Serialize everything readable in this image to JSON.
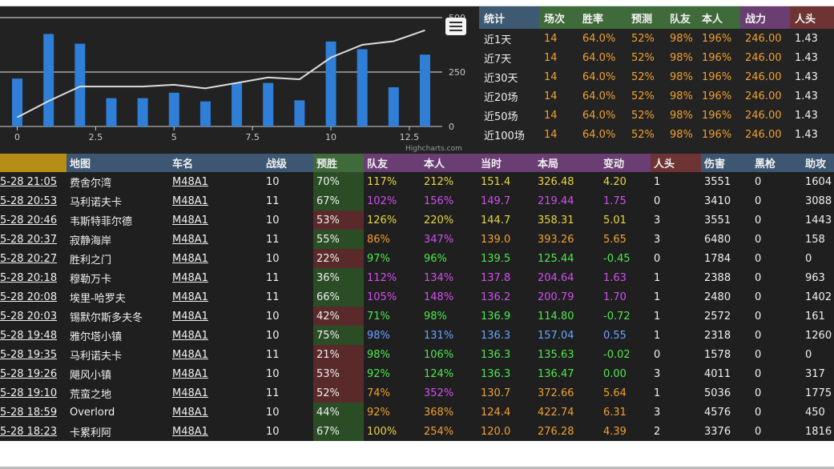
{
  "chart_data": {
    "type": "bar",
    "x": [
      0,
      1,
      2,
      3,
      4,
      5,
      6,
      7,
      8,
      9,
      10,
      11,
      12,
      13
    ],
    "series": [
      {
        "kind": "bar",
        "axis": "right",
        "color": "#2f7ed8",
        "values": [
          220,
          425,
          380,
          130,
          130,
          155,
          115,
          200,
          200,
          120,
          390,
          355,
          180,
          330
        ]
      },
      {
        "kind": "line",
        "axis": "left",
        "color": "#dddddd",
        "values": [
          5,
          14,
          22,
          22,
          22,
          23,
          21,
          24,
          27,
          26,
          38,
          45,
          47,
          53
        ]
      }
    ],
    "xticks": [
      "0",
      "2.5",
      "5",
      "7.5",
      "10",
      "12.5"
    ],
    "xtick_values": [
      0,
      2.5,
      5,
      7.5,
      10,
      12.5
    ],
    "yticks_right": [
      "500",
      "250",
      "0"
    ],
    "ylim_right": [
      0,
      500
    ],
    "ylim_left": [
      0,
      60
    ],
    "xlim": [
      -0.55,
      13.55
    ],
    "credit": "Highcharts.com"
  },
  "stats": {
    "headers": [
      "统计",
      "场次",
      "胜率",
      "预测",
      "队友",
      "本人",
      "战力",
      "人头"
    ],
    "rows": [
      [
        "近1天",
        "14",
        "64.0%",
        "52%",
        "98%",
        "196%",
        "246.00",
        "1.43"
      ],
      [
        "近7天",
        "14",
        "64.0%",
        "52%",
        "98%",
        "196%",
        "246.00",
        "1.43"
      ],
      [
        "近30天",
        "14",
        "64.0%",
        "52%",
        "98%",
        "196%",
        "246.00",
        "1.43"
      ],
      [
        "近20场",
        "14",
        "64.0%",
        "52%",
        "98%",
        "196%",
        "246.00",
        "1.43"
      ],
      [
        "近50场",
        "14",
        "64.0%",
        "52%",
        "98%",
        "196%",
        "246.00",
        "1.43"
      ],
      [
        "近100场",
        "14",
        "64.0%",
        "52%",
        "98%",
        "196%",
        "246.00",
        "1.43"
      ]
    ]
  },
  "battles": {
    "headers": [
      "",
      "地图",
      "车名",
      "战级",
      "预胜",
      "队友",
      "本人",
      "当时",
      "本局",
      "变动",
      "人头",
      "伤害",
      "黑枪",
      "助攻"
    ],
    "rows": [
      [
        "5-28 21:05",
        "费舍尔湾",
        "M48A1",
        "10",
        "70%",
        "117%",
        "212%",
        "151.4",
        "326.48",
        "4.20",
        "1",
        "3551",
        "0",
        "1604"
      ],
      [
        "5-28 20:53",
        "马利诺夫卡",
        "M48A1",
        "11",
        "67%",
        "102%",
        "156%",
        "149.7",
        "219.44",
        "1.75",
        "0",
        "3410",
        "0",
        "3088"
      ],
      [
        "5-28 20:46",
        "韦斯特菲尔德",
        "M48A1",
        "10",
        "53%",
        "126%",
        "220%",
        "144.7",
        "358.31",
        "5.01",
        "3",
        "3551",
        "0",
        "1443"
      ],
      [
        "5-28 20:37",
        "寂静海岸",
        "M48A1",
        "11",
        "55%",
        "86%",
        "347%",
        "139.0",
        "393.26",
        "5.65",
        "3",
        "6480",
        "0",
        "158"
      ],
      [
        "5-28 20:27",
        "胜利之门",
        "M48A1",
        "10",
        "22%",
        "97%",
        "96%",
        "139.5",
        "125.44",
        "-0.45",
        "0",
        "1784",
        "0",
        "0"
      ],
      [
        "5-28 20:18",
        "穆勒万卡",
        "M48A1",
        "11",
        "36%",
        "112%",
        "134%",
        "137.8",
        "204.64",
        "1.63",
        "1",
        "2388",
        "0",
        "963"
      ],
      [
        "5-28 20:08",
        "埃里-哈罗夫",
        "M48A1",
        "11",
        "66%",
        "105%",
        "148%",
        "136.2",
        "200.79",
        "1.70",
        "1",
        "2480",
        "0",
        "1402"
      ],
      [
        "5-28 20:03",
        "锡默尔斯多夫冬",
        "M48A1",
        "10",
        "42%",
        "71%",
        "98%",
        "136.9",
        "114.80",
        "-0.72",
        "1",
        "2572",
        "0",
        "161"
      ],
      [
        "5-28 19:48",
        "雅尔塔小镇",
        "M48A1",
        "10",
        "75%",
        "98%",
        "131%",
        "136.3",
        "157.04",
        "0.55",
        "1",
        "2318",
        "0",
        "1260"
      ],
      [
        "5-28 19:35",
        "马利诺夫卡",
        "M48A1",
        "11",
        "21%",
        "98%",
        "106%",
        "136.3",
        "135.63",
        "-0.02",
        "0",
        "1578",
        "0",
        "0"
      ],
      [
        "5-28 19:26",
        "飓风小镇",
        "M48A1",
        "10",
        "53%",
        "92%",
        "124%",
        "136.3",
        "136.47",
        "0.00",
        "3",
        "4011",
        "0",
        "317"
      ],
      [
        "5-28 19:10",
        "荒蛮之地",
        "M48A1",
        "11",
        "52%",
        "74%",
        "352%",
        "130.7",
        "372.66",
        "5.64",
        "1",
        "5036",
        "0",
        "1775"
      ],
      [
        "5-28 18:59",
        "Overlord",
        "M48A1",
        "10",
        "44%",
        "92%",
        "368%",
        "124.4",
        "422.74",
        "6.31",
        "3",
        "4576",
        "0",
        "450"
      ],
      [
        "5-28 18:23",
        "卡累利阿",
        "M48A1",
        "10",
        "67%",
        "100%",
        "254%",
        "120.0",
        "276.28",
        "4.39",
        "2",
        "3376",
        "0",
        "1816"
      ]
    ],
    "row_colors": [
      [
        "white",
        "white",
        "white",
        "white",
        "white",
        "yellow",
        "yellow",
        "yellow",
        "yellow",
        "yellow",
        "white",
        "white",
        "white",
        "white"
      ],
      [
        "white",
        "white",
        "white",
        "white",
        "white",
        "purple",
        "purple",
        "purple",
        "purple",
        "purple",
        "white",
        "white",
        "white",
        "white"
      ],
      [
        "white",
        "white",
        "white",
        "white",
        "white",
        "yellow",
        "yellow",
        "yellow",
        "yellow",
        "yellow",
        "white",
        "white",
        "white",
        "white"
      ],
      [
        "white",
        "white",
        "white",
        "white",
        "white",
        "orange",
        "purple",
        "orange",
        "orange",
        "orange",
        "white",
        "white",
        "white",
        "white"
      ],
      [
        "white",
        "white",
        "white",
        "white",
        "white",
        "green",
        "green",
        "green",
        "green",
        "green",
        "white",
        "white",
        "white",
        "white"
      ],
      [
        "white",
        "white",
        "white",
        "white",
        "white",
        "purple",
        "purple",
        "purple",
        "purple",
        "purple",
        "white",
        "white",
        "white",
        "white"
      ],
      [
        "white",
        "white",
        "white",
        "white",
        "white",
        "purple",
        "purple",
        "purple",
        "purple",
        "purple",
        "white",
        "white",
        "white",
        "white"
      ],
      [
        "white",
        "white",
        "white",
        "white",
        "white",
        "green",
        "green",
        "green",
        "green",
        "green",
        "white",
        "white",
        "white",
        "white"
      ],
      [
        "white",
        "white",
        "white",
        "white",
        "white",
        "blue",
        "blue",
        "blue",
        "blue",
        "blue",
        "white",
        "white",
        "white",
        "white"
      ],
      [
        "white",
        "white",
        "white",
        "white",
        "white",
        "green",
        "green",
        "green",
        "green",
        "green",
        "white",
        "white",
        "white",
        "white"
      ],
      [
        "white",
        "white",
        "white",
        "white",
        "white",
        "green",
        "green",
        "green",
        "green",
        "green",
        "white",
        "white",
        "white",
        "white"
      ],
      [
        "white",
        "white",
        "white",
        "white",
        "white",
        "orange",
        "purple",
        "orange",
        "orange",
        "orange",
        "white",
        "white",
        "white",
        "white"
      ],
      [
        "white",
        "white",
        "white",
        "white",
        "white",
        "orange",
        "orange",
        "orange",
        "orange",
        "orange",
        "white",
        "white",
        "white",
        "white"
      ],
      [
        "white",
        "white",
        "white",
        "white",
        "white",
        "yellow",
        "orange",
        "orange",
        "orange",
        "orange",
        "white",
        "white",
        "white",
        "white"
      ]
    ],
    "pred_bg": [
      "green",
      "green",
      "red",
      "green",
      "red",
      "green",
      "green",
      "red",
      "green",
      "red",
      "red",
      "red",
      "green",
      "green"
    ]
  },
  "colors": {
    "white": "#f0f0f0",
    "yellow": "#e8d540",
    "purple": "#d050f0",
    "green": "#4ee84e",
    "blue": "#68a4ff",
    "orange": "#f0a030"
  }
}
